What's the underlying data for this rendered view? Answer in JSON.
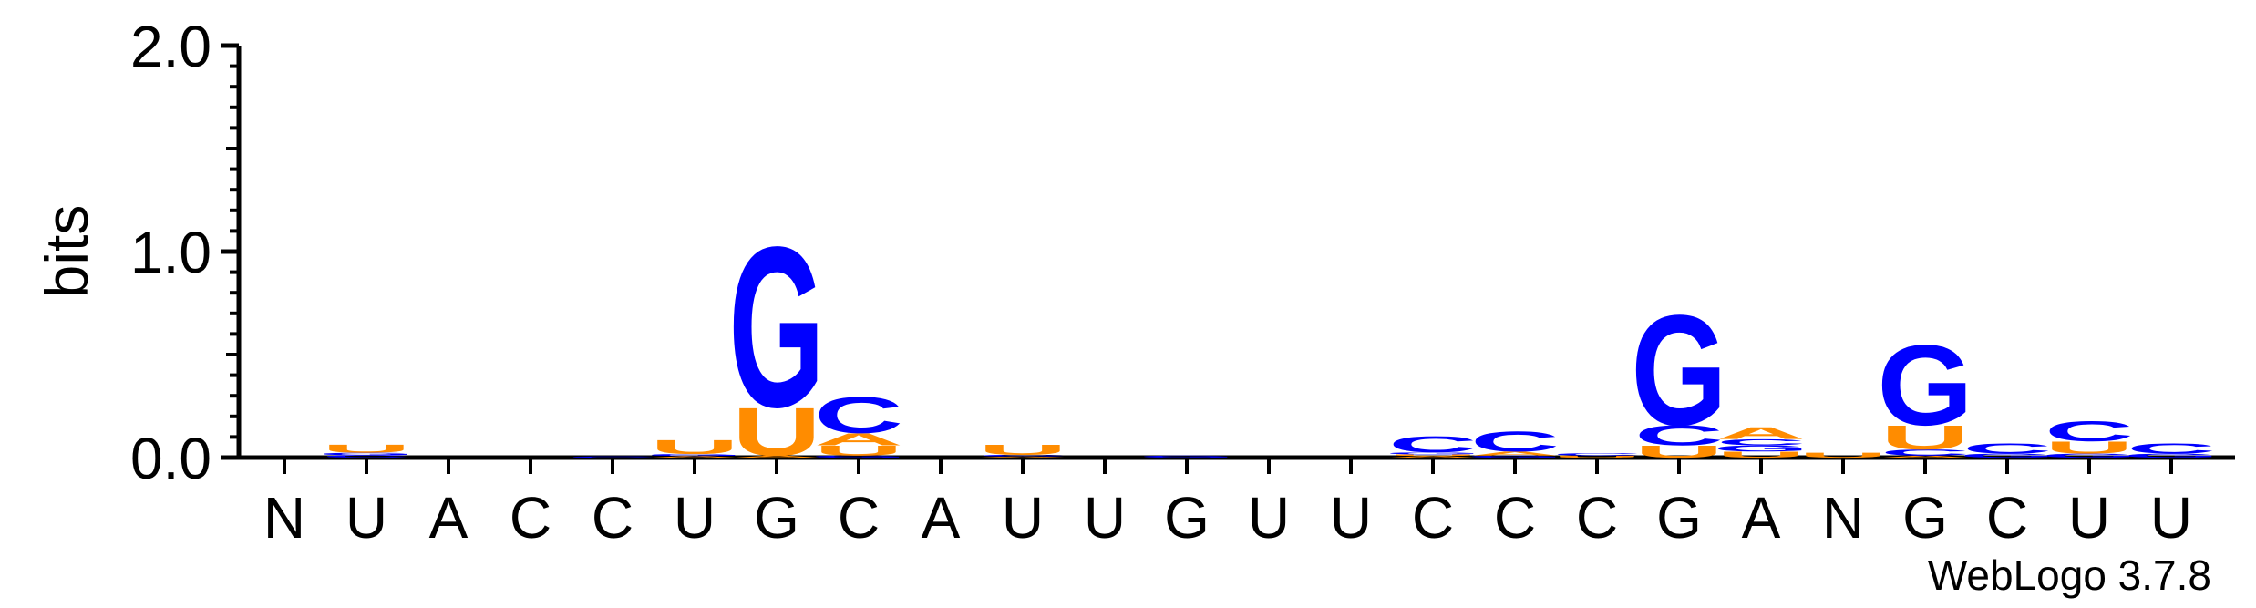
{
  "chart_data": {
    "type": "sequence-logo",
    "ylabel": "bits",
    "ylim": [
      0,
      2.0
    ],
    "yticks": [
      {
        "value": 0.0,
        "label": "0.0"
      },
      {
        "value": 1.0,
        "label": "1.0"
      },
      {
        "value": 2.0,
        "label": "2.0"
      }
    ],
    "colors": {
      "G": "#0000ff",
      "C": "#0000ff",
      "U": "#ff8c00",
      "A": "#ff8c00"
    },
    "positions": [
      {
        "label": "N",
        "stack": []
      },
      {
        "label": "U",
        "stack": [
          {
            "letter": "C",
            "bits": 0.012
          },
          {
            "letter": "G",
            "bits": 0.012
          },
          {
            "letter": "U",
            "bits": 0.04
          }
        ]
      },
      {
        "label": "A",
        "stack": []
      },
      {
        "label": "C",
        "stack": []
      },
      {
        "label": "C",
        "stack": [
          {
            "letter": "C",
            "bits": 0.006
          }
        ]
      },
      {
        "label": "U",
        "stack": [
          {
            "letter": "A",
            "bits": 0.008
          },
          {
            "letter": "G",
            "bits": 0.01
          },
          {
            "letter": "U",
            "bits": 0.07
          }
        ]
      },
      {
        "label": "G",
        "stack": [
          {
            "letter": "A",
            "bits": 0.01
          },
          {
            "letter": "U",
            "bits": 0.24
          },
          {
            "letter": "G",
            "bits": 0.8
          }
        ]
      },
      {
        "label": "C",
        "stack": [
          {
            "letter": "G",
            "bits": 0.01
          },
          {
            "letter": "U",
            "bits": 0.05
          },
          {
            "letter": "A",
            "bits": 0.06
          },
          {
            "letter": "C",
            "bits": 0.18
          }
        ]
      },
      {
        "label": "A",
        "stack": []
      },
      {
        "label": "U",
        "stack": [
          {
            "letter": "A",
            "bits": 0.006
          },
          {
            "letter": "C",
            "bits": 0.008
          },
          {
            "letter": "U",
            "bits": 0.05
          }
        ]
      },
      {
        "label": "U",
        "stack": []
      },
      {
        "label": "G",
        "stack": [
          {
            "letter": "G",
            "bits": 0.01
          }
        ]
      },
      {
        "label": "U",
        "stack": []
      },
      {
        "label": "U",
        "stack": []
      },
      {
        "label": "C",
        "stack": [
          {
            "letter": "A",
            "bits": 0.008
          },
          {
            "letter": "U",
            "bits": 0.008
          },
          {
            "letter": "G",
            "bits": 0.01
          },
          {
            "letter": "C",
            "bits": 0.08
          }
        ]
      },
      {
        "label": "C",
        "stack": [
          {
            "letter": "G",
            "bits": 0.01
          },
          {
            "letter": "A",
            "bits": 0.02
          },
          {
            "letter": "C",
            "bits": 0.1
          }
        ]
      },
      {
        "label": "C",
        "stack": [
          {
            "letter": "U",
            "bits": 0.01
          },
          {
            "letter": "C",
            "bits": 0.012
          }
        ]
      },
      {
        "label": "G",
        "stack": [
          {
            "letter": "U",
            "bits": 0.06
          },
          {
            "letter": "C",
            "bits": 0.1
          },
          {
            "letter": "G",
            "bits": 0.55
          }
        ]
      },
      {
        "label": "A",
        "stack": [
          {
            "letter": "U",
            "bits": 0.03
          },
          {
            "letter": "G",
            "bits": 0.03
          },
          {
            "letter": "C",
            "bits": 0.03
          },
          {
            "letter": "A",
            "bits": 0.06
          }
        ]
      },
      {
        "label": "N",
        "stack": [
          {
            "letter": "U",
            "bits": 0.025
          }
        ]
      },
      {
        "label": "G",
        "stack": [
          {
            "letter": "A",
            "bits": 0.01
          },
          {
            "letter": "C",
            "bits": 0.03
          },
          {
            "letter": "U",
            "bits": 0.12
          },
          {
            "letter": "G",
            "bits": 0.4
          }
        ]
      },
      {
        "label": "C",
        "stack": [
          {
            "letter": "G",
            "bits": 0.02
          },
          {
            "letter": "C",
            "bits": 0.05
          }
        ]
      },
      {
        "label": "U",
        "stack": [
          {
            "letter": "G",
            "bits": 0.02
          },
          {
            "letter": "U",
            "bits": 0.06
          },
          {
            "letter": "C",
            "bits": 0.1
          }
        ]
      },
      {
        "label": "U",
        "stack": [
          {
            "letter": "G",
            "bits": 0.02
          },
          {
            "letter": "C",
            "bits": 0.05
          }
        ]
      }
    ]
  },
  "footer": {
    "credit": "WebLogo 3.7.8"
  }
}
